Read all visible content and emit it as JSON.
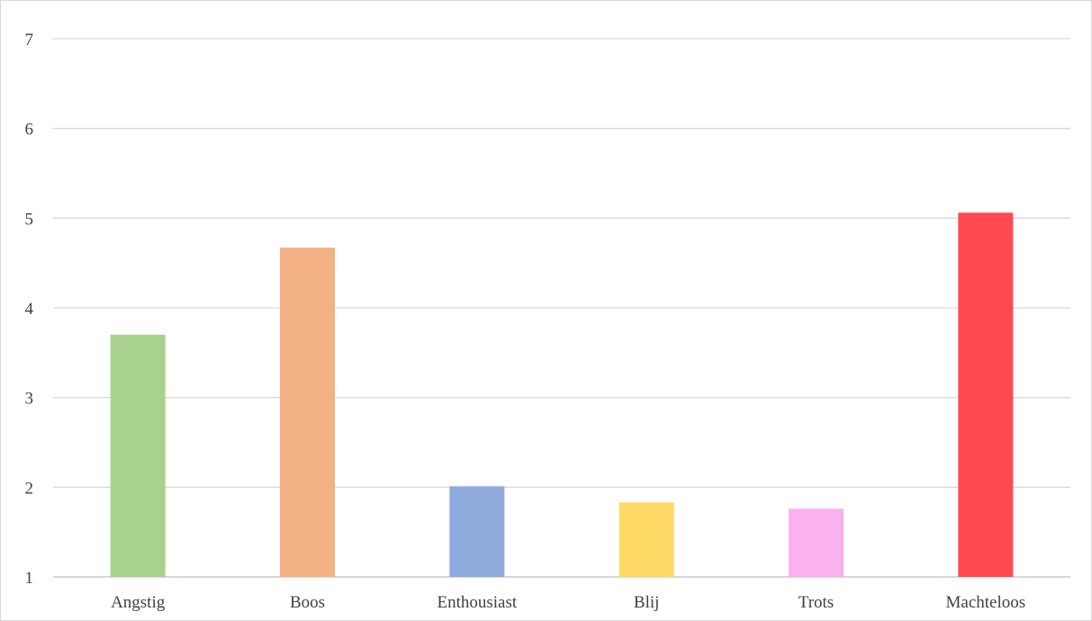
{
  "chart_data": {
    "type": "bar",
    "title": "",
    "xlabel": "",
    "ylabel": "",
    "categories": [
      "Angstig",
      "Boos",
      "Enthousiast",
      "Blij",
      "Trots",
      "Machteloos"
    ],
    "values": [
      3.7,
      4.67,
      2.01,
      1.83,
      1.76,
      5.06
    ],
    "colors": [
      "#a9d18e",
      "#f4b183",
      "#8faadc",
      "#ffd966",
      "#fbb0f0",
      "#ff4a50"
    ],
    "ylim": [
      1,
      7
    ],
    "yticks": [
      1,
      2,
      3,
      4,
      5,
      6,
      7
    ],
    "grid": true,
    "legend": "none"
  }
}
